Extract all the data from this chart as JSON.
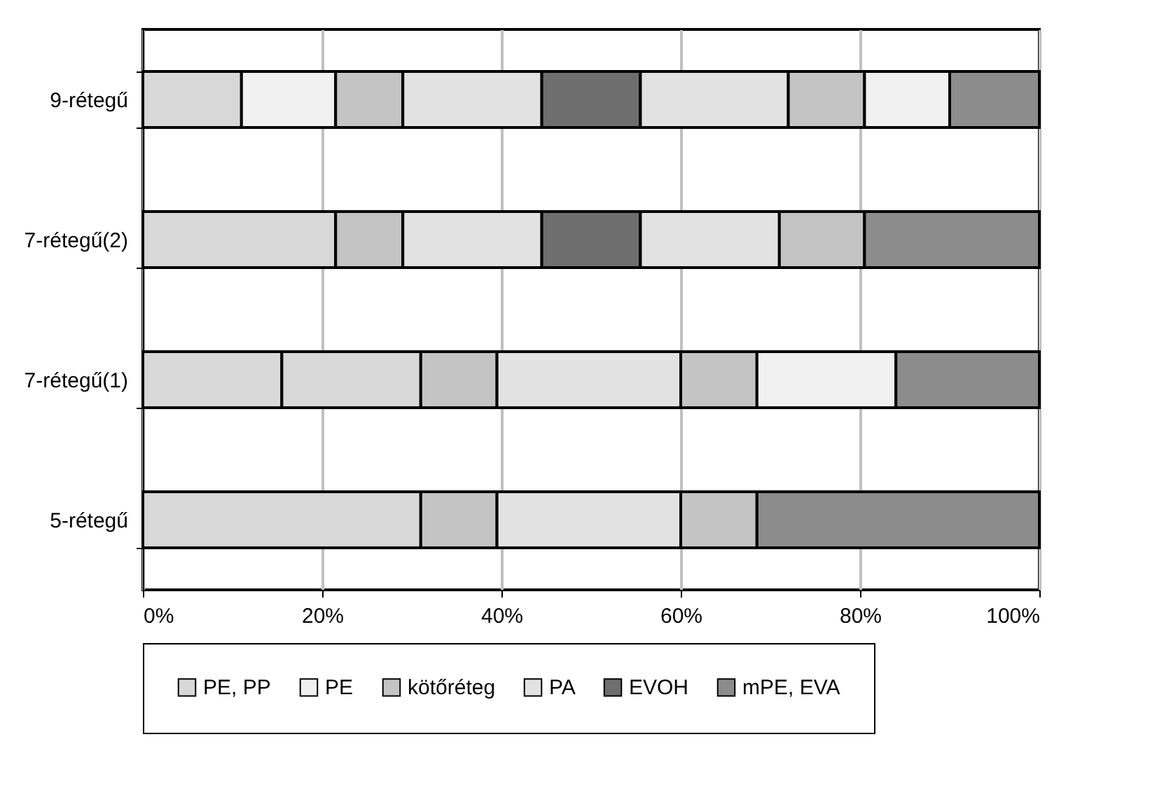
{
  "chart_data": {
    "type": "bar",
    "orientation": "horizontal",
    "stacked": true,
    "categories": [
      "9-rétegű",
      "7-rétegű(2)",
      "7-rétegű(1)",
      "5-rétegű"
    ],
    "series": [
      {
        "name": "PE, PP",
        "color": "#d8d8d8",
        "values": [
          11,
          21.5,
          15.5,
          31
        ]
      },
      {
        "color": "#d8d8d8",
        "values": [
          null,
          null,
          15.5,
          null
        ]
      },
      {
        "name": "PE",
        "color": "#f0f0f0",
        "values": [
          10.5,
          null,
          null,
          null
        ]
      },
      {
        "name": "kötőréteg",
        "color": "#c4c4c4",
        "values": [
          7.5,
          7.5,
          8.5,
          8.5
        ]
      },
      {
        "name": "PA",
        "color": "#e2e2e2",
        "values": [
          15.5,
          15.5,
          20.5,
          20.5
        ]
      },
      {
        "name": "EVOH",
        "color": "#6e6e6e",
        "values": [
          11,
          11,
          null,
          null
        ]
      },
      {
        "color": "#e2e2e2",
        "values": [
          16.5,
          15.5,
          null,
          null
        ]
      },
      {
        "color": "#c4c4c4",
        "values": [
          8.5,
          9.5,
          8.5,
          8.5
        ]
      },
      {
        "color": "#f0f0f0",
        "values": [
          9.5,
          null,
          15.5,
          null
        ]
      },
      {
        "name": "mPE, EVA",
        "color": "#8c8c8c",
        "values": [
          10,
          19.5,
          16,
          31.5
        ]
      }
    ],
    "xlim": [
      0,
      100
    ],
    "xticks": [
      {
        "value": 0,
        "label": "0%"
      },
      {
        "value": 20,
        "label": "20%"
      },
      {
        "value": 40,
        "label": "40%"
      },
      {
        "value": 60,
        "label": "60%"
      },
      {
        "value": 80,
        "label": "80%"
      },
      {
        "value": 100,
        "label": "100%"
      }
    ],
    "grid": "x",
    "legend": "bottom"
  }
}
